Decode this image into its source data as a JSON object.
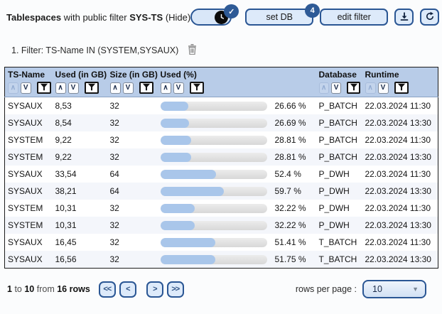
{
  "header": {
    "title": "Tablespaces",
    "subtitle": "with public filter",
    "public_filter_name": "SYS-TS",
    "hide_label": "(Hide)",
    "toggle": {
      "check_glyph": "✓"
    },
    "set_db": {
      "label": "set DB",
      "badge": "4"
    },
    "edit_filter": {
      "label": "edit filter"
    }
  },
  "filter_bar": {
    "text": "1. Filter: TS-Name IN (SYSTEM,SYSAUX)"
  },
  "table": {
    "sort_asc_glyph": "∧",
    "sort_desc_glyph": "V",
    "columns": [
      {
        "label": "TS-Name",
        "asc_disabled": true
      },
      {
        "label": "Used (in GB)",
        "asc_disabled": false
      },
      {
        "label": "Size (in GB)",
        "asc_disabled": false
      },
      {
        "label": "Used (%)",
        "asc_disabled": false
      },
      {
        "label": "Database",
        "asc_disabled": true
      },
      {
        "label": "Runtime",
        "asc_disabled": true
      }
    ],
    "rows": [
      {
        "ts_name": "SYSAUX",
        "used_gb": "8,53",
        "size_gb": "32",
        "used_pct": "26.66 %",
        "used_pct_value": 26.66,
        "database": "P_BATCH",
        "runtime": "22.03.2024 11:30"
      },
      {
        "ts_name": "SYSAUX",
        "used_gb": "8,54",
        "size_gb": "32",
        "used_pct": "26.69 %",
        "used_pct_value": 26.69,
        "database": "P_BATCH",
        "runtime": "22.03.2024 13:30"
      },
      {
        "ts_name": "SYSTEM",
        "used_gb": "9,22",
        "size_gb": "32",
        "used_pct": "28.81 %",
        "used_pct_value": 28.81,
        "database": "P_BATCH",
        "runtime": "22.03.2024 11:30"
      },
      {
        "ts_name": "SYSTEM",
        "used_gb": "9,22",
        "size_gb": "32",
        "used_pct": "28.81 %",
        "used_pct_value": 28.81,
        "database": "P_BATCH",
        "runtime": "22.03.2024 13:30"
      },
      {
        "ts_name": "SYSAUX",
        "used_gb": "33,54",
        "size_gb": "64",
        "used_pct": "52.4 %",
        "used_pct_value": 52.4,
        "database": "P_DWH",
        "runtime": "22.03.2024 11:30"
      },
      {
        "ts_name": "SYSAUX",
        "used_gb": "38,21",
        "size_gb": "64",
        "used_pct": "59.7 %",
        "used_pct_value": 59.7,
        "database": "P_DWH",
        "runtime": "22.03.2024 13:30"
      },
      {
        "ts_name": "SYSTEM",
        "used_gb": "10,31",
        "size_gb": "32",
        "used_pct": "32.22 %",
        "used_pct_value": 32.22,
        "database": "P_DWH",
        "runtime": "22.03.2024 11:30"
      },
      {
        "ts_name": "SYSTEM",
        "used_gb": "10,31",
        "size_gb": "32",
        "used_pct": "32.22 %",
        "used_pct_value": 32.22,
        "database": "P_DWH",
        "runtime": "22.03.2024 13:30"
      },
      {
        "ts_name": "SYSAUX",
        "used_gb": "16,45",
        "size_gb": "32",
        "used_pct": "51.41 %",
        "used_pct_value": 51.41,
        "database": "T_BATCH",
        "runtime": "22.03.2024 11:30"
      },
      {
        "ts_name": "SYSAUX",
        "used_gb": "16,56",
        "size_gb": "32",
        "used_pct": "51.75 %",
        "used_pct_value": 51.75,
        "database": "T_BATCH",
        "runtime": "22.03.2024 13:30"
      }
    ]
  },
  "footer": {
    "range_start": "1",
    "to_word": "to",
    "range_end": "10",
    "from_word": "from",
    "total": "16 rows",
    "pagination": {
      "first": "<<",
      "prev": "<",
      "next": ">",
      "last": ">>"
    },
    "rows_per_page_label": "rows per page :",
    "rows_per_page_value": "10"
  },
  "colors": {
    "accent": "#2a5694",
    "header_bg": "#b8cce8",
    "button_bg": "#ddeafa",
    "bar_fill": "#a9c6ea",
    "badge": "#2e5a96",
    "alt_row": "#f4f6fb"
  }
}
